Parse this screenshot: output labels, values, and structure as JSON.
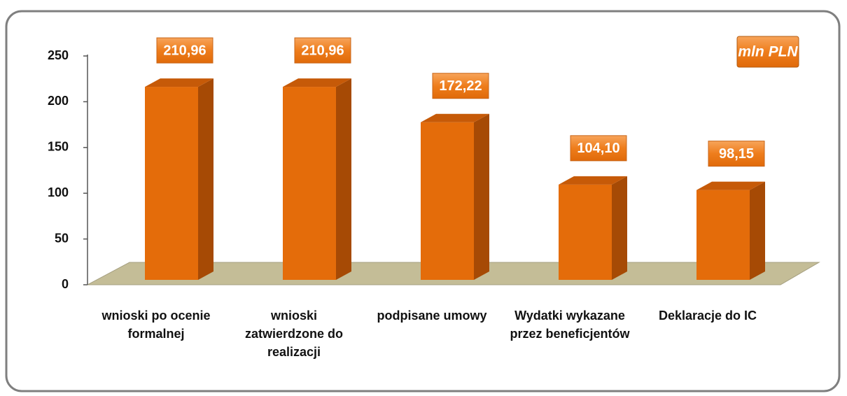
{
  "chart_data": {
    "type": "bar3d",
    "annotation": "mln PLN",
    "categories": [
      "wnioski po ocenie formalnej",
      "wnioski zatwierdzone do realizacji",
      "podpisane umowy",
      "Wydatki wykazane przez beneficjentów",
      "Deklaracje do IC"
    ],
    "values": [
      210.96,
      210.96,
      172.22,
      104.1,
      98.15
    ],
    "value_labels": [
      "210,96",
      "210,96",
      "172,22",
      "104,10",
      "98,15"
    ],
    "color": "#e46c0a",
    "ylim": [
      0,
      250
    ],
    "yticks": [
      0,
      50,
      100,
      150,
      200,
      250
    ]
  }
}
